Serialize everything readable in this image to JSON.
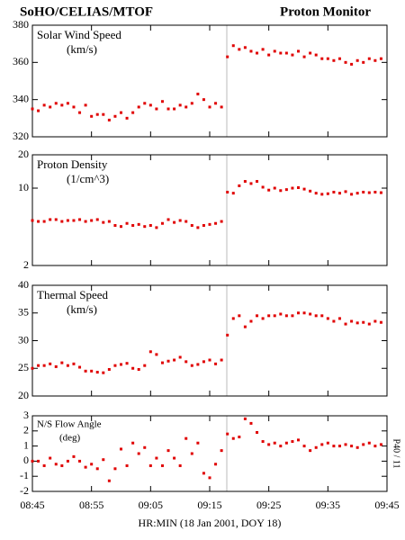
{
  "header": {
    "title_left": "SoHO/CELIAS/MTOF",
    "title_right": "Proton Monitor"
  },
  "chart_data": [
    {
      "type": "scatter",
      "label": "Solar Wind Speed",
      "unit": "(km/s)",
      "color": "#e00000",
      "ylim": [
        320,
        380
      ],
      "yticks": [
        320,
        340,
        360,
        380
      ],
      "xlim": [
        "08:45",
        "09:45"
      ],
      "xticks": [
        "08:45",
        "08:55",
        "09:05",
        "09:15",
        "09:25",
        "09:35",
        "09:45"
      ],
      "x": [
        "08:45",
        "08:46",
        "08:47",
        "08:48",
        "08:49",
        "08:50",
        "08:51",
        "08:52",
        "08:53",
        "08:54",
        "08:55",
        "08:56",
        "08:57",
        "08:58",
        "08:59",
        "09:00",
        "09:01",
        "09:02",
        "09:03",
        "09:04",
        "09:05",
        "09:06",
        "09:07",
        "09:08",
        "09:09",
        "09:10",
        "09:11",
        "09:12",
        "09:13",
        "09:14",
        "09:15",
        "09:16",
        "09:17",
        "09:18",
        "09:19",
        "09:20",
        "09:21",
        "09:22",
        "09:23",
        "09:24",
        "09:25",
        "09:26",
        "09:27",
        "09:28",
        "09:29",
        "09:30",
        "09:31",
        "09:32",
        "09:33",
        "09:34",
        "09:35",
        "09:36",
        "09:37",
        "09:38",
        "09:39",
        "09:40",
        "09:41",
        "09:42",
        "09:43",
        "09:44"
      ],
      "values": [
        335,
        334,
        337,
        336,
        338,
        337,
        338,
        336,
        333,
        337,
        331,
        332,
        332,
        329,
        331,
        333,
        330,
        333,
        336,
        338,
        337,
        335,
        339,
        335,
        335,
        337,
        336,
        338,
        343,
        340,
        336,
        338,
        336,
        363,
        369,
        367,
        368,
        366,
        365,
        367,
        364,
        366,
        365,
        365,
        364,
        366,
        363,
        365,
        364,
        362,
        362,
        361,
        362,
        360,
        359,
        361,
        360,
        362,
        361,
        362
      ]
    },
    {
      "type": "scatter",
      "label": "Proton Density",
      "unit": "(1/cm^3)",
      "color": "#e00000",
      "log_scale": true,
      "ylim": [
        2,
        20
      ],
      "yticks": [
        2,
        10,
        20
      ],
      "xlim": [
        "08:45",
        "09:45"
      ],
      "xticks": [
        "08:45",
        "08:55",
        "09:05",
        "09:15",
        "09:25",
        "09:35",
        "09:45"
      ],
      "x": [
        "08:45",
        "08:46",
        "08:47",
        "08:48",
        "08:49",
        "08:50",
        "08:51",
        "08:52",
        "08:53",
        "08:54",
        "08:55",
        "08:56",
        "08:57",
        "08:58",
        "08:59",
        "09:00",
        "09:01",
        "09:02",
        "09:03",
        "09:04",
        "09:05",
        "09:06",
        "09:07",
        "09:08",
        "09:09",
        "09:10",
        "09:11",
        "09:12",
        "09:13",
        "09:14",
        "09:15",
        "09:16",
        "09:17",
        "09:18",
        "09:19",
        "09:20",
        "09:21",
        "09:22",
        "09:23",
        "09:24",
        "09:25",
        "09:26",
        "09:27",
        "09:28",
        "09:29",
        "09:30",
        "09:31",
        "09:32",
        "09:33",
        "09:34",
        "09:35",
        "09:36",
        "09:37",
        "09:38",
        "09:39",
        "09:40",
        "09:41",
        "09:42",
        "09:43",
        "09:44"
      ],
      "values": [
        5.1,
        5.0,
        5.0,
        5.2,
        5.2,
        5.0,
        5.1,
        5.1,
        5.2,
        5.0,
        5.1,
        5.2,
        4.9,
        5.0,
        4.6,
        4.5,
        4.8,
        4.6,
        4.7,
        4.5,
        4.6,
        4.4,
        4.8,
        5.2,
        4.9,
        5.1,
        5.0,
        4.6,
        4.4,
        4.6,
        4.7,
        4.8,
        5.0,
        9.2,
        9.0,
        10.5,
        11.5,
        11.0,
        11.5,
        10.2,
        9.6,
        10.0,
        9.5,
        9.7,
        10.0,
        10.1,
        9.8,
        9.4,
        9.0,
        8.8,
        8.9,
        9.2,
        9.0,
        9.3,
        8.8,
        9.0,
        9.2,
        9.1,
        9.2,
        9.1
      ]
    },
    {
      "type": "scatter",
      "label": "Thermal Speed",
      "unit": "(km/s)",
      "color": "#e00000",
      "ylim": [
        20,
        40
      ],
      "yticks": [
        20,
        25,
        30,
        35,
        40
      ],
      "xlim": [
        "08:45",
        "09:45"
      ],
      "xticks": [
        "08:45",
        "08:55",
        "09:05",
        "09:15",
        "09:25",
        "09:35",
        "09:45"
      ],
      "x": [
        "08:45",
        "08:46",
        "08:47",
        "08:48",
        "08:49",
        "08:50",
        "08:51",
        "08:52",
        "08:53",
        "08:54",
        "08:55",
        "08:56",
        "08:57",
        "08:58",
        "08:59",
        "09:00",
        "09:01",
        "09:02",
        "09:03",
        "09:04",
        "09:05",
        "09:06",
        "09:07",
        "09:08",
        "09:09",
        "09:10",
        "09:11",
        "09:12",
        "09:13",
        "09:14",
        "09:15",
        "09:16",
        "09:17",
        "09:18",
        "09:19",
        "09:20",
        "09:21",
        "09:22",
        "09:23",
        "09:24",
        "09:25",
        "09:26",
        "09:27",
        "09:28",
        "09:29",
        "09:30",
        "09:31",
        "09:32",
        "09:33",
        "09:34",
        "09:35",
        "09:36",
        "09:37",
        "09:38",
        "09:39",
        "09:40",
        "09:41",
        "09:42",
        "09:43",
        "09:44"
      ],
      "values": [
        25,
        25.5,
        25.5,
        25.8,
        25.3,
        26,
        25.5,
        25.8,
        25.2,
        24.5,
        24.5,
        24.3,
        24.2,
        24.8,
        25.5,
        25.7,
        25.9,
        25,
        24.8,
        25.5,
        28,
        27.5,
        26,
        26.3,
        26.5,
        27,
        26.2,
        25.5,
        25.7,
        26.2,
        26.5,
        25.8,
        26.5,
        31,
        34,
        34.5,
        32.5,
        33.5,
        34.5,
        34,
        34.5,
        34.5,
        34.8,
        34.5,
        34.5,
        35,
        35,
        34.8,
        34.5,
        34.5,
        34,
        33.5,
        34,
        33,
        33.5,
        33.2,
        33.3,
        33,
        33.5,
        33.3
      ]
    },
    {
      "type": "scatter",
      "label": "N/S Flow Angle",
      "unit": "(deg)",
      "color": "#e00000",
      "side_note": "P40 / 11",
      "ylim": [
        -2,
        3
      ],
      "yticks": [
        -2,
        -1,
        0,
        1,
        2,
        3
      ],
      "xlim": [
        "08:45",
        "09:45"
      ],
      "xticks": [
        "08:45",
        "08:55",
        "09:05",
        "09:15",
        "09:25",
        "09:35",
        "09:45"
      ],
      "xlabel": "HR:MIN (18 Jan 2001, DOY 18)",
      "x": [
        "08:45",
        "08:46",
        "08:47",
        "08:48",
        "08:49",
        "08:50",
        "08:51",
        "08:52",
        "08:53",
        "08:54",
        "08:55",
        "08:56",
        "08:57",
        "08:58",
        "08:59",
        "09:00",
        "09:01",
        "09:02",
        "09:03",
        "09:04",
        "09:05",
        "09:06",
        "09:07",
        "09:08",
        "09:09",
        "09:10",
        "09:11",
        "09:12",
        "09:13",
        "09:14",
        "09:15",
        "09:16",
        "09:17",
        "09:18",
        "09:19",
        "09:20",
        "09:21",
        "09:22",
        "09:23",
        "09:24",
        "09:25",
        "09:26",
        "09:27",
        "09:28",
        "09:29",
        "09:30",
        "09:31",
        "09:32",
        "09:33",
        "09:34",
        "09:35",
        "09:36",
        "09:37",
        "09:38",
        "09:39",
        "09:40",
        "09:41",
        "09:42",
        "09:43",
        "09:44"
      ],
      "values": [
        0,
        0,
        -0.3,
        0.2,
        -0.2,
        -0.3,
        0,
        0.3,
        0,
        -0.4,
        -0.2,
        -0.5,
        0.1,
        -1.3,
        -0.5,
        0.8,
        -0.3,
        1.2,
        0.5,
        0.9,
        -0.3,
        0.2,
        -0.3,
        0.7,
        0.2,
        -0.3,
        1.5,
        0.5,
        1.2,
        -0.8,
        -1.1,
        -0.2,
        0.7,
        1.8,
        1.5,
        1.6,
        2.8,
        2.5,
        1.9,
        1.3,
        1.1,
        1.2,
        1.0,
        1.2,
        1.3,
        1.4,
        1.0,
        0.7,
        0.9,
        1.1,
        1.2,
        1.0,
        1.0,
        1.1,
        1.0,
        0.9,
        1.1,
        1.2,
        1.0,
        1.1
      ]
    }
  ]
}
